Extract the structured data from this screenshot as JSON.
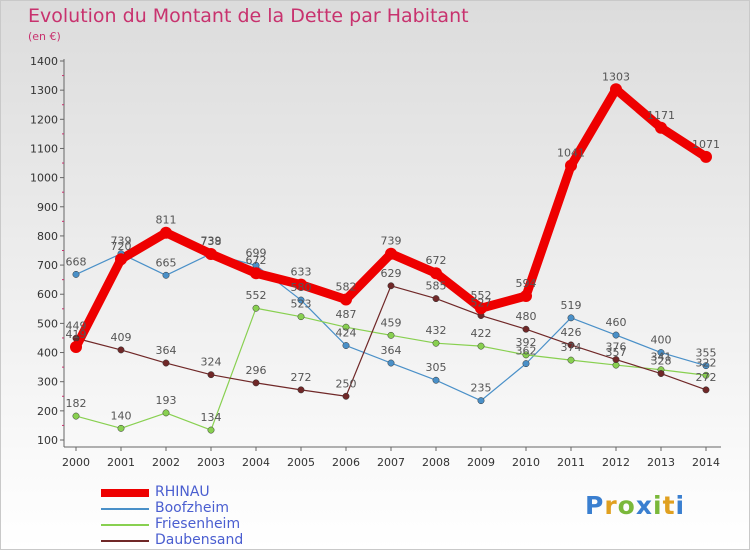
{
  "title": "Evolution du Montant de la Dette par Habitant",
  "subtitle": "(en €)",
  "logo_text": "Proxiti",
  "chart_data": {
    "type": "line",
    "x": [
      "2000",
      "2001",
      "2002",
      "2003",
      "2004",
      "2005",
      "2006",
      "2007",
      "2008",
      "2009",
      "2010",
      "2011",
      "2012",
      "2013",
      "2014"
    ],
    "ylim": [
      100,
      1400
    ],
    "yticks": [
      "100",
      "200",
      "300",
      "400",
      "500",
      "600",
      "700",
      "800",
      "900",
      "1000",
      "1100",
      "1200",
      "1300",
      "1400"
    ],
    "grid": false,
    "legend_position": "bottom-left",
    "series": [
      {
        "name": "RHINAU",
        "color": "#ee0000",
        "values": [
          419,
          720,
          811,
          738,
          672,
          633,
          582,
          739,
          672,
          552,
          594,
          1041,
          1303,
          1171,
          1071
        ],
        "labels": [
          "419",
          "720",
          "811",
          "738",
          "672",
          "633",
          "582",
          "739",
          "672",
          "552",
          "594",
          "1041",
          "1303",
          "1171",
          "1071"
        ]
      },
      {
        "name": "Boofzheim",
        "color": "#4a90c8",
        "values": [
          668,
          739,
          665,
          739,
          699,
          580,
          424,
          364,
          305,
          235,
          362,
          519,
          460,
          400,
          355
        ],
        "labels": [
          "668",
          "739",
          "665",
          "739",
          "699",
          "580",
          "424",
          "364",
          "305",
          "235",
          "362",
          "519",
          "460",
          "400",
          "355"
        ]
      },
      {
        "name": "Friesenheim",
        "color": "#88d050",
        "values": [
          182,
          140,
          193,
          134,
          552,
          523,
          487,
          459,
          432,
          422,
          392,
          374,
          357,
          341,
          322
        ],
        "labels": [
          "182",
          "140",
          "193",
          "134",
          "552",
          "523",
          "487",
          "459",
          "432",
          "422",
          "392",
          "374",
          "357",
          "341",
          "322"
        ]
      },
      {
        "name": "Daubensand",
        "color": "#702828",
        "values": [
          449,
          409,
          364,
          324,
          296,
          272,
          250,
          629,
          585,
          527,
          480,
          426,
          376,
          328,
          272
        ],
        "labels": [
          "449",
          "409",
          "364",
          "324",
          "296",
          "272",
          "250",
          "629",
          "585",
          "527",
          "480",
          "426",
          "376",
          "328",
          "272"
        ]
      }
    ]
  }
}
